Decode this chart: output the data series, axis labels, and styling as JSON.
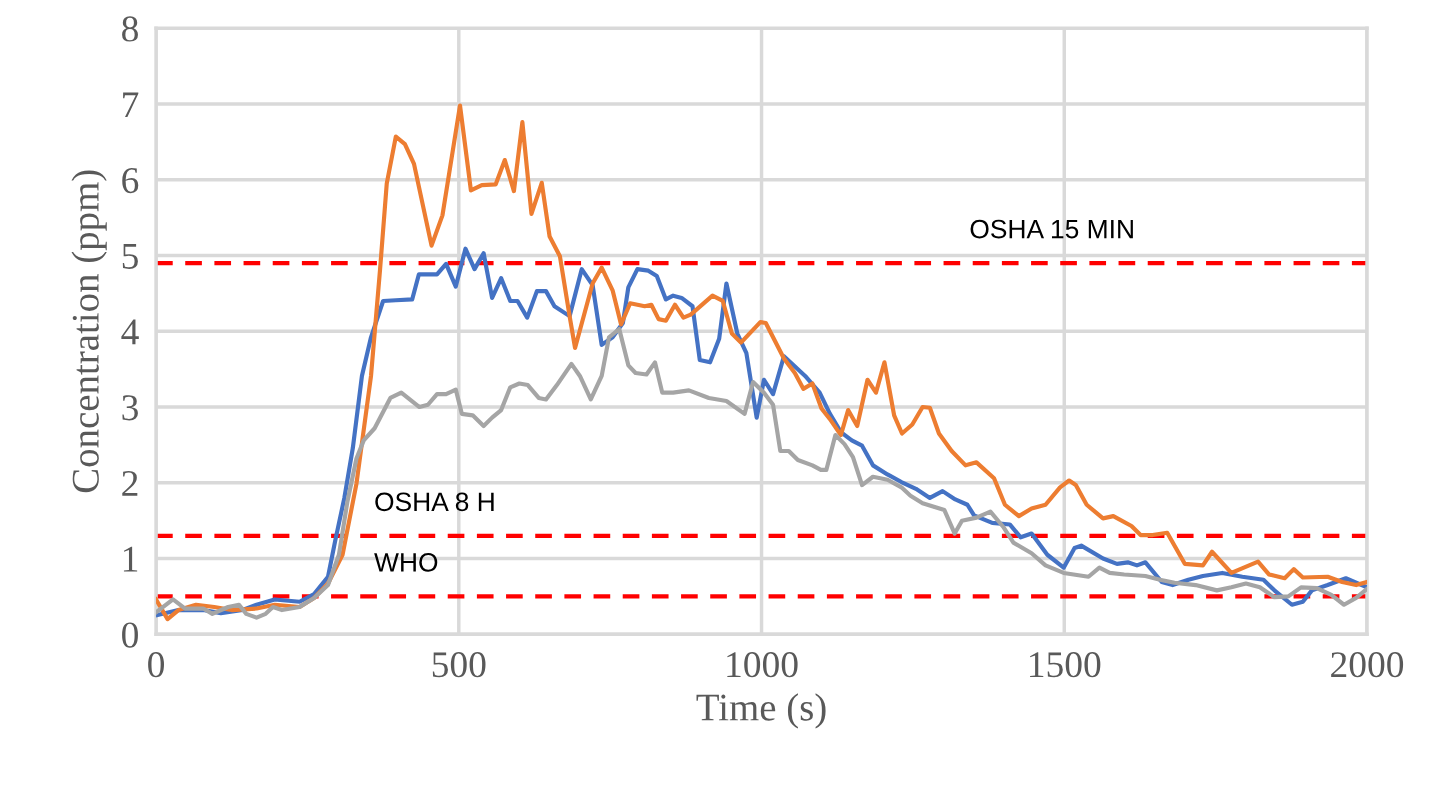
{
  "chart_data": {
    "type": "line",
    "xlabel": "Time (s)",
    "ylabel": "Concentration (ppm)",
    "xlim": [
      0,
      2000
    ],
    "xticks": [
      0,
      500,
      1000,
      1500,
      2000
    ],
    "ylim": [
      0,
      8
    ],
    "yticks": [
      0,
      1,
      2,
      3,
      4,
      5,
      6,
      7,
      8
    ],
    "grid": true,
    "line_style": "solid",
    "series": [
      {
        "color": "#4472c4",
        "x": [
          0,
          37,
          78,
          107,
          143,
          166,
          196,
          237,
          261,
          284,
          296,
          311,
          325,
          340,
          355,
          375,
          396,
          423,
          434,
          464,
          479,
          495,
          511,
          526,
          541,
          555,
          570,
          585,
          597,
          613,
          629,
          644,
          658,
          683,
          703,
          721,
          736,
          754,
          771,
          780,
          795,
          813,
          827,
          842,
          854,
          868,
          886,
          898,
          915,
          930,
          942,
          960,
          975,
          992,
          1004,
          1019,
          1037,
          1072,
          1096,
          1113,
          1131,
          1149,
          1166,
          1184,
          1208,
          1231,
          1255,
          1278,
          1299,
          1320,
          1340,
          1351,
          1381,
          1410,
          1428,
          1446,
          1472,
          1499,
          1517,
          1528,
          1564,
          1587,
          1605,
          1620,
          1634,
          1661,
          1679,
          1705,
          1729,
          1761,
          1794,
          1829,
          1847,
          1876,
          1894,
          1909,
          1935,
          1965,
          2000
        ],
        "values": [
          0.25,
          0.32,
          0.32,
          0.28,
          0.32,
          0.39,
          0.46,
          0.43,
          0.53,
          0.76,
          1.24,
          1.8,
          2.46,
          3.41,
          3.92,
          4.4,
          4.41,
          4.42,
          4.75,
          4.75,
          4.89,
          4.59,
          5.09,
          4.82,
          5.03,
          4.44,
          4.7,
          4.4,
          4.4,
          4.18,
          4.53,
          4.53,
          4.33,
          4.2,
          4.82,
          4.61,
          3.82,
          3.92,
          4.11,
          4.58,
          4.82,
          4.8,
          4.73,
          4.42,
          4.47,
          4.44,
          4.33,
          3.62,
          3.59,
          3.9,
          4.63,
          3.97,
          3.71,
          2.86,
          3.36,
          3.17,
          3.67,
          3.41,
          3.19,
          2.91,
          2.67,
          2.56,
          2.49,
          2.23,
          2.11,
          2.01,
          1.92,
          1.8,
          1.89,
          1.78,
          1.71,
          1.57,
          1.47,
          1.45,
          1.28,
          1.33,
          1.05,
          0.88,
          1.14,
          1.17,
          1.0,
          0.93,
          0.95,
          0.91,
          0.95,
          0.69,
          0.65,
          0.72,
          0.77,
          0.81,
          0.76,
          0.72,
          0.58,
          0.39,
          0.43,
          0.58,
          0.65,
          0.74,
          0.62
        ]
      },
      {
        "color": "#ed7d31",
        "x": [
          0,
          19,
          37,
          66,
          96,
          125,
          166,
          196,
          237,
          261,
          284,
          308,
          331,
          355,
          370,
          381,
          396,
          411,
          426,
          455,
          473,
          502,
          520,
          538,
          561,
          576,
          591,
          605,
          620,
          637,
          650,
          667,
          683,
          692,
          721,
          736,
          754,
          768,
          783,
          807,
          818,
          830,
          842,
          857,
          871,
          883,
          919,
          936,
          951,
          966,
          998,
          1007,
          1037,
          1055,
          1069,
          1084,
          1099,
          1113,
          1131,
          1143,
          1158,
          1175,
          1189,
          1203,
          1219,
          1232,
          1249,
          1266,
          1278,
          1293,
          1314,
          1337,
          1355,
          1384,
          1402,
          1425,
          1446,
          1469,
          1493,
          1508,
          1519,
          1537,
          1564,
          1581,
          1611,
          1626,
          1646,
          1670,
          1699,
          1729,
          1744,
          1776,
          1820,
          1838,
          1864,
          1879,
          1894,
          1935,
          1959,
          1982,
          2000
        ],
        "values": [
          0.46,
          0.2,
          0.32,
          0.39,
          0.36,
          0.32,
          0.34,
          0.39,
          0.36,
          0.48,
          0.67,
          1.05,
          1.99,
          3.41,
          4.82,
          5.95,
          6.57,
          6.47,
          6.21,
          5.13,
          5.53,
          6.98,
          5.86,
          5.93,
          5.94,
          6.26,
          5.85,
          6.76,
          5.55,
          5.96,
          5.25,
          4.99,
          4.2,
          3.78,
          4.63,
          4.84,
          4.54,
          4.09,
          4.37,
          4.33,
          4.35,
          4.16,
          4.14,
          4.35,
          4.18,
          4.22,
          4.47,
          4.4,
          3.97,
          3.85,
          4.12,
          4.11,
          3.64,
          3.45,
          3.24,
          3.31,
          2.98,
          2.84,
          2.63,
          2.96,
          2.75,
          3.36,
          3.19,
          3.59,
          2.89,
          2.65,
          2.77,
          3.0,
          2.99,
          2.65,
          2.42,
          2.23,
          2.27,
          2.06,
          1.71,
          1.56,
          1.66,
          1.71,
          1.94,
          2.03,
          1.97,
          1.71,
          1.53,
          1.56,
          1.43,
          1.31,
          1.31,
          1.34,
          0.93,
          0.91,
          1.09,
          0.81,
          0.96,
          0.79,
          0.74,
          0.86,
          0.75,
          0.76,
          0.69,
          0.65,
          0.69
        ]
      },
      {
        "color": "#a5a5a5",
        "x": [
          0,
          28,
          48,
          78,
          93,
          119,
          137,
          149,
          166,
          181,
          193,
          208,
          237,
          261,
          284,
          302,
          316,
          331,
          343,
          361,
          387,
          405,
          435,
          449,
          464,
          479,
          495,
          505,
          523,
          541,
          555,
          570,
          585,
          600,
          614,
          632,
          644,
          662,
          686,
          700,
          718,
          736,
          748,
          765,
          780,
          792,
          810,
          824,
          836,
          854,
          880,
          913,
          942,
          972,
          986,
          1004,
          1019,
          1031,
          1045,
          1060,
          1084,
          1098,
          1107,
          1122,
          1137,
          1151,
          1166,
          1184,
          1208,
          1231,
          1246,
          1266,
          1302,
          1319,
          1331,
          1355,
          1378,
          1399,
          1416,
          1446,
          1469,
          1499,
          1540,
          1558,
          1575,
          1599,
          1634,
          1658,
          1682,
          1717,
          1752,
          1776,
          1800,
          1823,
          1847,
          1870,
          1891,
          1917,
          1941,
          1962,
          1982,
          2000
        ],
        "values": [
          0.29,
          0.46,
          0.34,
          0.34,
          0.27,
          0.36,
          0.39,
          0.27,
          0.22,
          0.27,
          0.36,
          0.32,
          0.36,
          0.48,
          0.65,
          1.05,
          1.75,
          2.32,
          2.56,
          2.72,
          3.12,
          3.19,
          3.0,
          3.03,
          3.17,
          3.17,
          3.23,
          2.91,
          2.89,
          2.75,
          2.86,
          2.96,
          3.26,
          3.31,
          3.29,
          3.12,
          3.1,
          3.29,
          3.57,
          3.41,
          3.1,
          3.41,
          3.92,
          4.03,
          3.55,
          3.45,
          3.43,
          3.59,
          3.19,
          3.19,
          3.22,
          3.12,
          3.08,
          2.91,
          3.33,
          3.19,
          3.03,
          2.42,
          2.42,
          2.3,
          2.23,
          2.17,
          2.17,
          2.63,
          2.51,
          2.34,
          1.97,
          2.08,
          2.04,
          1.94,
          1.83,
          1.73,
          1.64,
          1.33,
          1.5,
          1.54,
          1.62,
          1.42,
          1.21,
          1.07,
          0.91,
          0.81,
          0.76,
          0.88,
          0.81,
          0.79,
          0.77,
          0.72,
          0.68,
          0.65,
          0.58,
          0.62,
          0.67,
          0.62,
          0.49,
          0.5,
          0.62,
          0.61,
          0.52,
          0.39,
          0.48,
          0.6
        ]
      }
    ],
    "ref_lines": [
      {
        "axis": "y",
        "value": 4.9,
        "label": "OSHA 15 MIN",
        "color": "#ff0000",
        "line_style": "dashed"
      },
      {
        "axis": "y",
        "value": 1.3,
        "label": "OSHA 8 H",
        "color": "#ff0000",
        "line_style": "dashed"
      },
      {
        "axis": "y",
        "value": 0.5,
        "label": "WHO",
        "color": "#ff0000",
        "line_style": "dashed"
      }
    ]
  }
}
